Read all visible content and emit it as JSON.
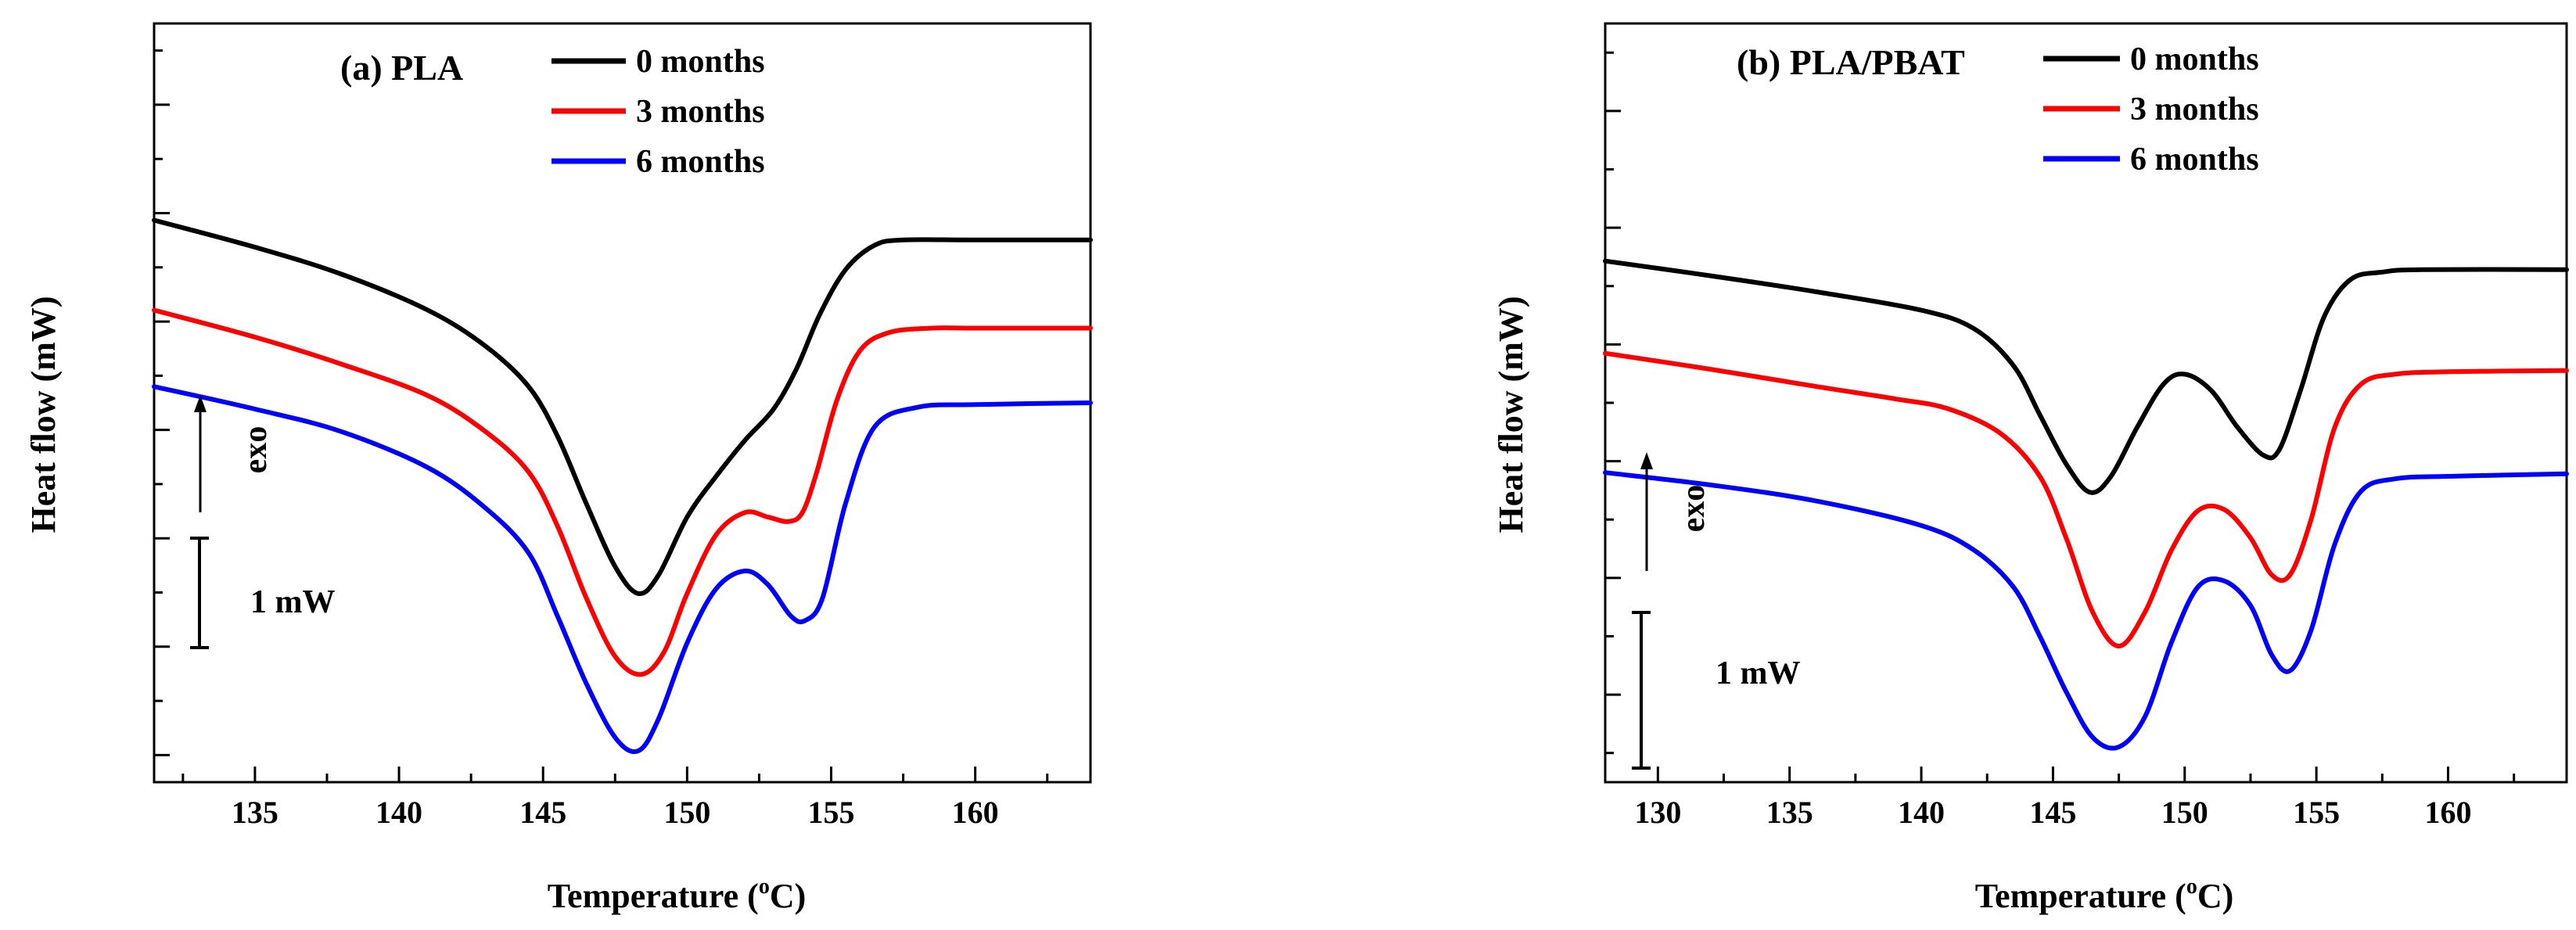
{
  "chart_data": [
    {
      "type": "line",
      "panel_label": "(a)",
      "title": "PLA",
      "xlabel": "Temperature (",
      "xlabel_sup": "o",
      "xlabel_end": "C)",
      "ylabel": "Heat flow (mW)",
      "xlim": [
        131.5,
        164
      ],
      "x_ticks": [
        135,
        140,
        145,
        150,
        155,
        160
      ],
      "x_tick_labels": [
        "135",
        "140",
        "145",
        "150",
        "155",
        "160"
      ],
      "y_units": "mW (relative, offset curves)",
      "ylim": [
        0,
        7
      ],
      "scale_bar": {
        "label": "1 mW",
        "value": 1
      },
      "direction_label": "exo",
      "legend_position": "top-center",
      "series": [
        {
          "name": "0 months",
          "color": "#000000",
          "x": [
            131.5,
            135,
            138,
            141,
            143,
            144.5,
            145.5,
            146.5,
            147.5,
            148.3,
            149,
            150,
            151,
            152,
            153,
            153.8,
            154.6,
            155.5,
            156.5,
            157.5,
            160,
            164
          ],
          "y": [
            5.9,
            5.6,
            5.3,
            4.9,
            4.5,
            4.05,
            3.5,
            2.75,
            2.05,
            1.75,
            1.95,
            2.6,
            3.05,
            3.45,
            3.8,
            4.25,
            4.85,
            5.35,
            5.62,
            5.68,
            5.68,
            5.68
          ]
        },
        {
          "name": "3 months",
          "color": "#ff0000",
          "x": [
            131.5,
            135,
            138,
            141,
            143,
            144.5,
            145.5,
            146.5,
            147.5,
            148.4,
            149.2,
            150,
            151,
            152,
            152.8,
            153.5,
            154,
            154.5,
            155.2,
            156,
            157,
            158.5,
            160,
            164
          ],
          "y": [
            4.9,
            4.6,
            4.3,
            3.95,
            3.55,
            3.1,
            2.5,
            1.7,
            1.05,
            0.85,
            1.1,
            1.75,
            2.4,
            2.65,
            2.6,
            2.55,
            2.65,
            3.1,
            3.9,
            4.45,
            4.65,
            4.7,
            4.7,
            4.7
          ]
        },
        {
          "name": "6 months",
          "color": "#0000ff",
          "x": [
            131.5,
            135,
            138,
            141,
            143,
            144.5,
            145.5,
            146.5,
            147.5,
            148.3,
            149,
            150,
            151,
            152,
            152.8,
            153.6,
            154.1,
            154.7,
            155.5,
            156.5,
            158,
            160,
            164
          ],
          "y": [
            4.05,
            3.8,
            3.55,
            3.15,
            2.7,
            2.2,
            1.5,
            0.75,
            0.15,
            0.0,
            0.35,
            1.2,
            1.8,
            2.0,
            1.85,
            1.5,
            1.45,
            1.7,
            2.75,
            3.6,
            3.82,
            3.85,
            3.87
          ]
        }
      ]
    },
    {
      "type": "line",
      "panel_label": "(b)",
      "title": "PLA/PBAT",
      "xlabel": "Temperature (",
      "xlabel_sup": "o",
      "xlabel_end": "C)",
      "ylabel": "Heat flow (mW)",
      "xlim": [
        128,
        164.5
      ],
      "x_ticks": [
        130,
        135,
        140,
        145,
        150,
        155,
        160
      ],
      "x_tick_labels": [
        "130",
        "135",
        "140",
        "145",
        "150",
        "155",
        "160"
      ],
      "y_units": "mW (relative, offset curves)",
      "ylim": [
        0,
        4.8
      ],
      "scale_bar": {
        "label": "1 mW",
        "value": 1
      },
      "direction_label": "exo",
      "legend_position": "top-center",
      "series": [
        {
          "name": "0 months",
          "color": "#000000",
          "x": [
            128,
            132,
            136,
            140,
            142,
            143.5,
            144.5,
            145.5,
            146.4,
            147.2,
            148.2,
            149.2,
            150,
            151,
            152,
            153,
            153.6,
            154.4,
            155.3,
            156.3,
            157.5,
            159,
            164.5
          ],
          "y": [
            3.95,
            3.83,
            3.7,
            3.55,
            3.4,
            3.1,
            2.7,
            2.3,
            2.07,
            2.2,
            2.6,
            2.95,
            3.03,
            2.9,
            2.6,
            2.37,
            2.42,
            2.9,
            3.5,
            3.8,
            3.86,
            3.88,
            3.88
          ]
        },
        {
          "name": "3 months",
          "color": "#ff0000",
          "x": [
            128,
            132,
            136,
            139,
            141,
            143,
            144.5,
            145.5,
            146.5,
            147.5,
            148.5,
            149.5,
            150.5,
            151.5,
            152.5,
            153.3,
            154,
            154.8,
            155.7,
            156.7,
            158,
            160,
            164.5
          ],
          "y": [
            3.2,
            3.07,
            2.93,
            2.83,
            2.75,
            2.55,
            2.2,
            1.7,
            1.1,
            0.82,
            1.1,
            1.6,
            1.92,
            1.93,
            1.7,
            1.4,
            1.4,
            1.85,
            2.6,
            2.95,
            3.03,
            3.05,
            3.06
          ]
        },
        {
          "name": "6 months",
          "color": "#0000ff",
          "x": [
            128,
            132,
            136,
            140,
            142,
            143.5,
            144.5,
            145.5,
            146.5,
            147.5,
            148.5,
            149.5,
            150.5,
            151.5,
            152.5,
            153.3,
            154,
            154.8,
            155.7,
            156.7,
            158,
            160,
            164.5
          ],
          "y": [
            2.23,
            2.13,
            2.0,
            1.8,
            1.6,
            1.3,
            0.9,
            0.45,
            0.08,
            0.0,
            0.25,
            0.85,
            1.3,
            1.35,
            1.15,
            0.75,
            0.62,
            0.95,
            1.65,
            2.08,
            2.18,
            2.2,
            2.22
          ]
        }
      ]
    }
  ]
}
